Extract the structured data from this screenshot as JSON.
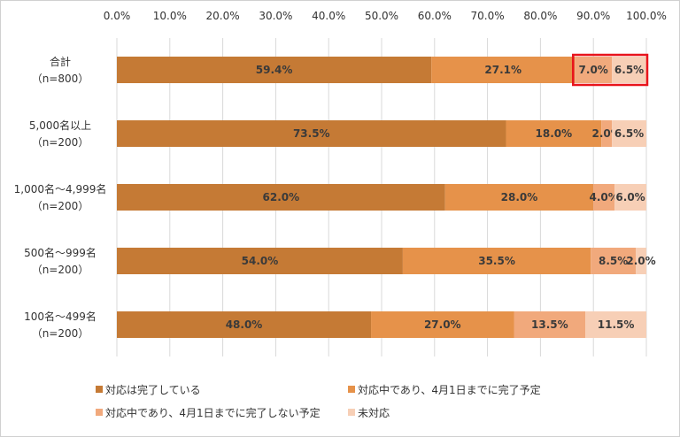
{
  "chart_data": {
    "type": "bar",
    "orientation": "horizontal",
    "stacked": true,
    "x_ticks": [
      "0.0%",
      "10.0%",
      "20.0%",
      "30.0%",
      "40.0%",
      "50.0%",
      "60.0%",
      "70.0%",
      "80.0%",
      "90.0%",
      "100.0%"
    ],
    "xlim": [
      0,
      100
    ],
    "grid": true,
    "legend_position": "bottom",
    "categories": [
      {
        "line1": "合計",
        "line2": "（n=800）"
      },
      {
        "line1": "5,000名以上",
        "line2": "（n=200）"
      },
      {
        "line1": "1,000名～4,999名",
        "line2": "（n=200）"
      },
      {
        "line1": "500名～999名",
        "line2": "（n=200）"
      },
      {
        "line1": "100名～499名",
        "line2": "（n=200）"
      }
    ],
    "series": [
      {
        "name": "対応は完了している",
        "color": "#c57a35",
        "values": [
          59.4,
          73.5,
          62.0,
          54.0,
          48.0
        ],
        "labels": [
          "59.4%",
          "73.5%",
          "62.0%",
          "54.0%",
          "48.0%"
        ]
      },
      {
        "name": "対応中であり、4月1日までに完了予定",
        "color": "#e6924a",
        "values": [
          27.1,
          18.0,
          28.0,
          35.5,
          27.0
        ],
        "labels": [
          "27.1%",
          "18.0%",
          "28.0%",
          "35.5%",
          "27.0%"
        ]
      },
      {
        "name": "対応中であり、4月1日までに完了しない予定",
        "color": "#f1a97c",
        "values": [
          7.0,
          2.0,
          4.0,
          8.5,
          13.5
        ],
        "labels": [
          "7.0%",
          "2.0%",
          "4.0%",
          "8.5%",
          "13.5%"
        ]
      },
      {
        "name": "未対応",
        "color": "#f7cfb6",
        "values": [
          6.5,
          6.5,
          6.0,
          2.0,
          11.5
        ],
        "labels": [
          "6.5%",
          "6.5%",
          "6.0%",
          "2.0%",
          "11.5%"
        ]
      }
    ],
    "highlight": {
      "category_index": 0,
      "series_indices": [
        2,
        3
      ],
      "color": "#e8141c"
    }
  }
}
